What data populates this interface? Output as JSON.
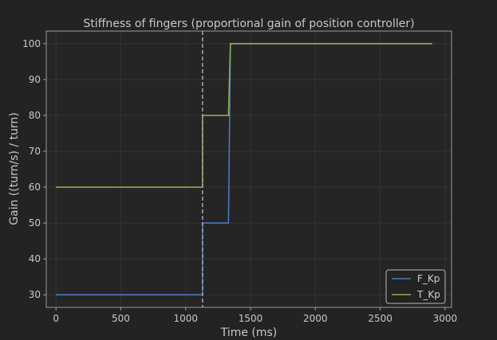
{
  "chart_data": {
    "type": "line",
    "title": "Stiffness of fingers (proportional gain of position controller)",
    "xlabel": "Time (ms)",
    "ylabel": "Gain ((turn/s) / turn)",
    "xlim": [
      -75,
      3050
    ],
    "ylim": [
      26.5,
      103.5
    ],
    "xticks": [
      0,
      500,
      1000,
      1500,
      2000,
      2500,
      3000
    ],
    "yticks": [
      30,
      40,
      50,
      60,
      70,
      80,
      90,
      100
    ],
    "grid": true,
    "legend_position": "bottom-right",
    "vertical_marker_x": 1130,
    "series": [
      {
        "name": "F_Kp",
        "color": "#4a78c0",
        "x": [
          0,
          1130,
          1130,
          1330,
          1345,
          2900
        ],
        "y": [
          30,
          30,
          50,
          50,
          100,
          100
        ]
      },
      {
        "name": "T_Kp",
        "color": "#8ab04e",
        "x": [
          0,
          1130,
          1130,
          1330,
          1345,
          2900
        ],
        "y": [
          60,
          60,
          80,
          80,
          100,
          100
        ]
      }
    ],
    "colors": {
      "background": "#232323",
      "plot_background": "#252525",
      "axis": "#9a9a9a",
      "grid": "#343434",
      "text": "#c8c8c8",
      "marker": "#a8a8a8"
    }
  }
}
